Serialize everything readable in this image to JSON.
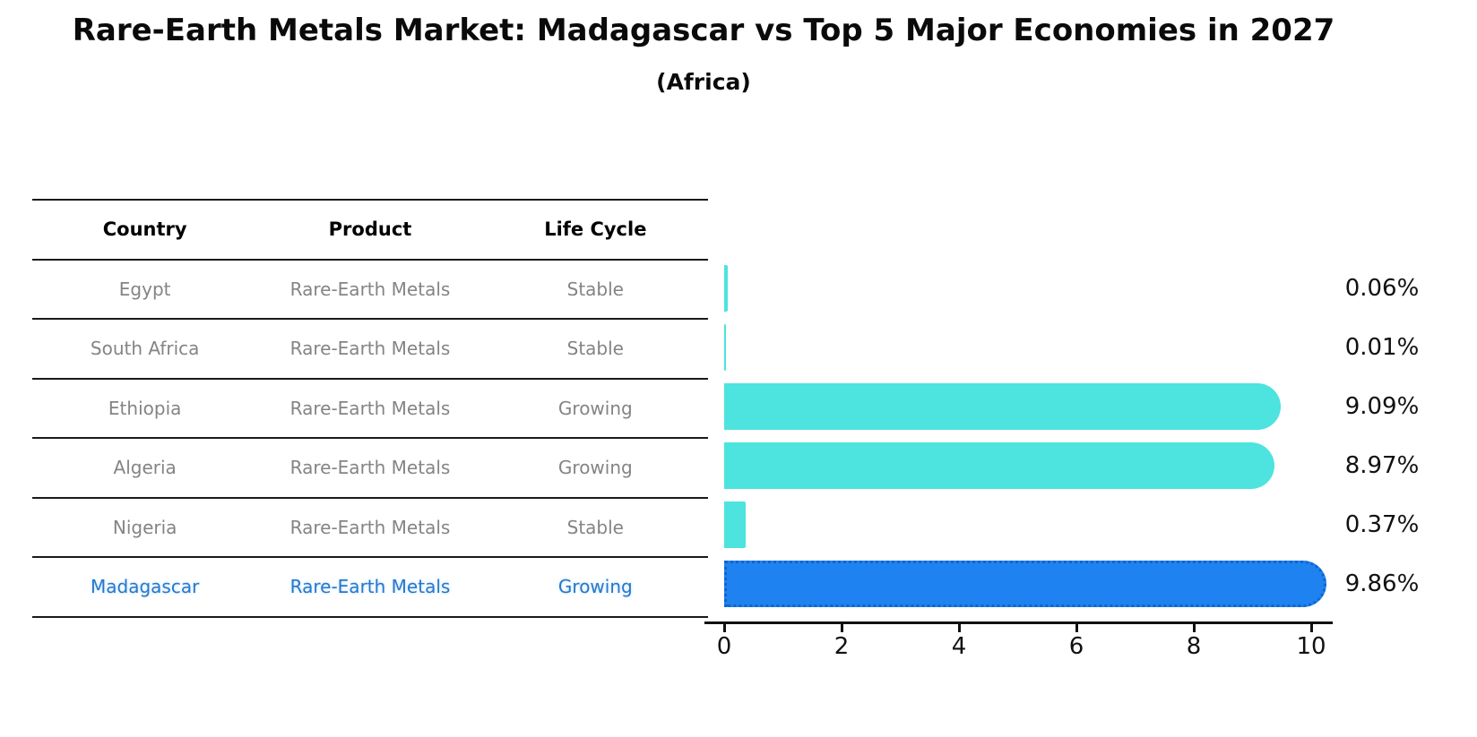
{
  "title": "Rare-Earth Metals Market: Madagascar vs Top 5 Major Economies in 2027",
  "subtitle": "(Africa)",
  "table": {
    "headers": [
      "Country",
      "Product",
      "Life Cycle"
    ],
    "rows": [
      {
        "country": "Egypt",
        "product": "Rare-Earth Metals",
        "life_cycle": "Stable",
        "highlight": false
      },
      {
        "country": "South Africa",
        "product": "Rare-Earth Metals",
        "life_cycle": "Stable",
        "highlight": false
      },
      {
        "country": "Ethiopia",
        "product": "Rare-Earth Metals",
        "life_cycle": "Growing",
        "highlight": false
      },
      {
        "country": "Algeria",
        "product": "Rare-Earth Metals",
        "life_cycle": "Growing",
        "highlight": false
      },
      {
        "country": "Nigeria",
        "product": "Rare-Earth Metals",
        "life_cycle": "Stable",
        "highlight": false
      },
      {
        "country": "Madagascar",
        "product": "Rare-Earth Metals",
        "life_cycle": "Growing",
        "highlight": true
      }
    ]
  },
  "chart_data": {
    "type": "bar",
    "orientation": "horizontal",
    "title": "Rare-Earth Metals Market: Madagascar vs Top 5 Major Economies in 2027",
    "subtitle": "(Africa)",
    "categories": [
      "Egypt",
      "South Africa",
      "Ethiopia",
      "Algeria",
      "Nigeria",
      "Madagascar"
    ],
    "values": [
      0.06,
      0.01,
      9.09,
      8.97,
      0.37,
      9.86
    ],
    "value_labels": [
      "0.06%",
      "0.01%",
      "9.09%",
      "8.97%",
      "0.37%",
      "9.86%"
    ],
    "x_ticks": [
      0,
      2,
      4,
      6,
      8,
      10
    ],
    "xlim": [
      0,
      10.4
    ],
    "grid": false,
    "legend": "none",
    "bar_color": "#4DE3DF",
    "highlight_color": "#1E82F0",
    "highlight_index": 5,
    "highlight_category": "Madagascar"
  },
  "colors": {
    "row_text": "#848484",
    "header_text": "#000000",
    "highlight_text": "#2878C8",
    "line": "#1a1a1a",
    "bar": "#4DE3DF",
    "highlight_bar": "#1E82F0"
  }
}
